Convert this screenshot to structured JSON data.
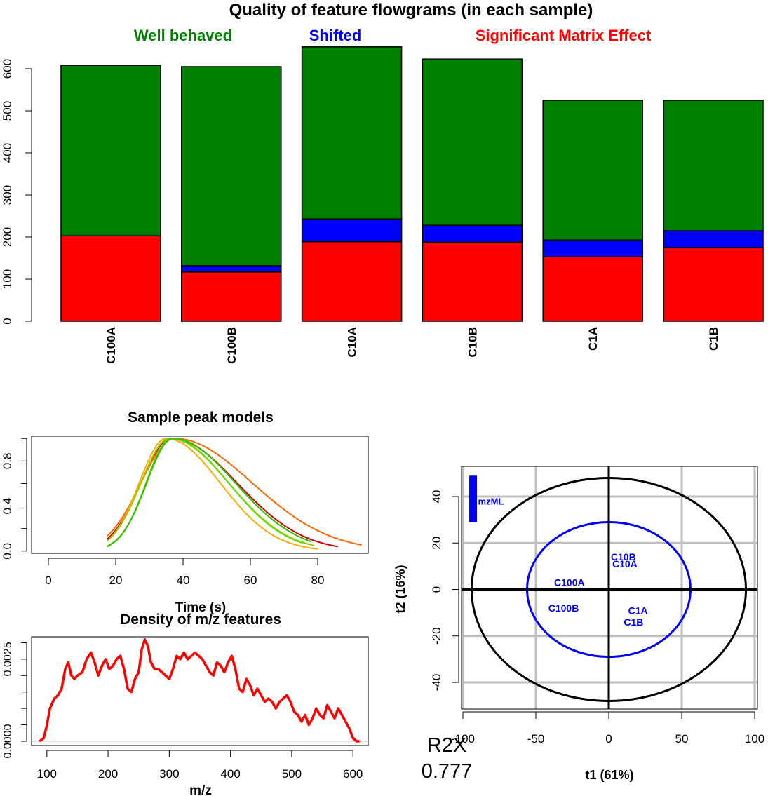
{
  "colors": {
    "good": "#008000",
    "shifted": "#0000FF",
    "matrix": "#FF0000",
    "density": "#FF0000",
    "pca_points": "#0000FF",
    "grid": "#BEBEBE"
  },
  "chart_data": [
    {
      "type": "bar",
      "stacked": true,
      "title": "Quality of feature flowgrams (in each sample)",
      "legend": [
        "Well behaved",
        "Shifted",
        "Significant Matrix Effect"
      ],
      "legend_colors": [
        "#008000",
        "#0000FF",
        "#FF0000"
      ],
      "legend_placement": "top",
      "categories": [
        "C100A",
        "C100B",
        "C10A",
        "C10B",
        "C1A",
        "C1B"
      ],
      "series": [
        {
          "name": "Significant Matrix Effect",
          "color": "#FF0000",
          "values": [
            203,
            117,
            189,
            188,
            153,
            175
          ]
        },
        {
          "name": "Shifted",
          "color": "#0000FF",
          "values": [
            0,
            15,
            54,
            40,
            40,
            40
          ]
        },
        {
          "name": "Well behaved",
          "color": "#008000",
          "values": [
            405,
            473,
            409,
            395,
            332,
            310
          ]
        }
      ],
      "yticks": [
        "0",
        "100",
        "200",
        "300",
        "400",
        "500",
        "600"
      ],
      "ylim": [
        0,
        650
      ]
    },
    {
      "type": "line",
      "title": "Sample peak models",
      "xlabel": "Time (s)",
      "ylabel": "",
      "xlim": [
        -5,
        95
      ],
      "ylim": [
        -0.02,
        1.02
      ],
      "xticks": [
        "0",
        "20",
        "40",
        "60",
        "80"
      ],
      "yticks": [
        "0.0",
        "0.4",
        "0.8"
      ],
      "curve_model": "asymmetric gaussian, apex = 1",
      "series": [
        {
          "color": "#CC0000",
          "start": 17.5,
          "end": 86,
          "apex": 36.5,
          "left_width": 9.0,
          "right_width": 19.5
        },
        {
          "color": "#FF6600",
          "start": 17.5,
          "end": 93,
          "apex": 37.5,
          "left_width": 10.0,
          "right_width": 23.0
        },
        {
          "color": "#FFAA00",
          "start": 17.5,
          "end": 80,
          "apex": 35.0,
          "left_width": 8.0,
          "right_width": 16.0
        },
        {
          "color": "#99CC00",
          "start": 17.5,
          "end": 79,
          "apex": 36.0,
          "left_width": 8.5,
          "right_width": 17.5
        },
        {
          "color": "#66DD00",
          "start": 17.5,
          "end": 76,
          "apex": 36.5,
          "left_width": 7.5,
          "right_width": 17.0
        },
        {
          "color": "#33BB00",
          "start": 17.5,
          "end": 78,
          "apex": 37.0,
          "left_width": 7.8,
          "right_width": 18.5
        }
      ]
    },
    {
      "type": "line",
      "title": "Density of m/z features",
      "xlabel": "m/z",
      "ylabel": "",
      "color": "#FF0000",
      "xlim": [
        75,
        625
      ],
      "ylim": [
        0,
        0.0035
      ],
      "xticks": [
        "100",
        "200",
        "300",
        "400",
        "500",
        "600"
      ],
      "yticks": [
        "0.0000",
        "0.0025"
      ],
      "x": [
        88,
        95,
        100,
        105,
        112,
        118,
        124,
        130,
        135,
        140,
        145,
        150,
        158,
        165,
        172,
        178,
        184,
        190,
        196,
        202,
        208,
        214,
        220,
        226,
        232,
        238,
        244,
        250,
        255,
        260,
        265,
        270,
        276,
        282,
        288,
        294,
        300,
        306,
        312,
        318,
        324,
        330,
        336,
        342,
        348,
        354,
        360,
        366,
        372,
        378,
        384,
        390,
        396,
        402,
        408,
        414,
        420,
        426,
        432,
        438,
        444,
        450,
        456,
        462,
        468,
        474,
        480,
        486,
        492,
        498,
        504,
        510,
        516,
        522,
        528,
        534,
        540,
        546,
        552,
        558,
        564,
        570,
        576,
        582,
        588,
        594,
        600,
        606,
        611
      ],
      "y": [
        0.0,
        0.0001,
        0.0005,
        0.001,
        0.0013,
        0.0014,
        0.0016,
        0.0022,
        0.0024,
        0.002,
        0.0019,
        0.002,
        0.0021,
        0.0025,
        0.0027,
        0.0024,
        0.002,
        0.0023,
        0.0025,
        0.0022,
        0.0023,
        0.0025,
        0.0026,
        0.0022,
        0.0016,
        0.0015,
        0.0019,
        0.0021,
        0.0028,
        0.0031,
        0.0029,
        0.0024,
        0.0022,
        0.0022,
        0.0021,
        0.002,
        0.0019,
        0.0022,
        0.0026,
        0.0025,
        0.0027,
        0.0025,
        0.0026,
        0.0027,
        0.0026,
        0.0025,
        0.0023,
        0.0021,
        0.002,
        0.0024,
        0.0023,
        0.0021,
        0.0024,
        0.0026,
        0.0022,
        0.0016,
        0.0015,
        0.0019,
        0.0017,
        0.0014,
        0.0016,
        0.0014,
        0.0012,
        0.0013,
        0.0012,
        0.001,
        0.0012,
        0.0013,
        0.0014,
        0.0012,
        0.0009,
        0.0008,
        0.0006,
        0.0008,
        0.0005,
        0.0007,
        0.001,
        0.0008,
        0.0007,
        0.0011,
        0.0009,
        0.0007,
        0.001,
        0.0008,
        0.0006,
        0.0004,
        0.0001,
        0.0,
        0.0
      ]
    },
    {
      "type": "scatter",
      "xlabel": "t1 (61%)",
      "ylabel": "t2 (16%)",
      "xlim": [
        -100,
        100
      ],
      "ylim": [
        -50,
        50
      ],
      "xticks": [
        "-100",
        "-50",
        "0",
        "50",
        "100"
      ],
      "yticks": [
        "-40",
        "-20",
        "0",
        "20",
        "40"
      ],
      "grid": true,
      "points": [
        {
          "label": "C10B",
          "x": 10,
          "y": 14
        },
        {
          "label": "C10A",
          "x": 11,
          "y": 11
        },
        {
          "label": "C100A",
          "x": -27,
          "y": 3
        },
        {
          "label": "C100B",
          "x": -31,
          "y": -8
        },
        {
          "label": "C1A",
          "x": 20,
          "y": -9
        },
        {
          "label": "C1B",
          "x": 17,
          "y": -14
        }
      ],
      "ellipses": [
        {
          "rx": 94,
          "ry": 48,
          "color": "#000000"
        },
        {
          "rx": 56,
          "ry": 29,
          "color": "#0000FF"
        }
      ],
      "legend": [
        "mzML"
      ],
      "legend_placement": "top-left",
      "legend_bar": {
        "x": -93,
        "y_from": 29,
        "y_to": 49,
        "color": "#0000FF"
      },
      "r2x_label": "R2X",
      "r2x_value": "0.777"
    }
  ]
}
